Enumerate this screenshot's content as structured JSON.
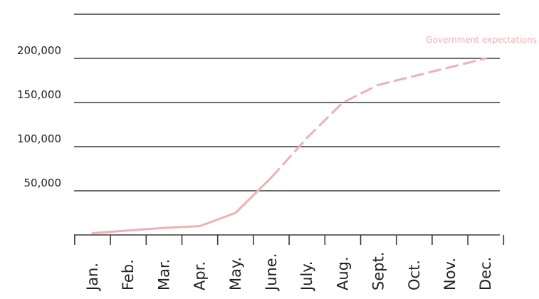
{
  "chart_data": {
    "type": "line",
    "title": "",
    "xlabel": "",
    "ylabel": "",
    "categories": [
      "Jan.",
      "Feb.",
      "Mar.",
      "Apr.",
      "May.",
      "June.",
      "July.",
      "Aug.",
      "Sept.",
      "Oct.",
      "Nov.",
      "Dec."
    ],
    "y_ticks": [
      "50,000",
      "100,000",
      "150,000",
      "200,000"
    ],
    "ylim": [
      0,
      250000
    ],
    "grid": true,
    "series": [
      {
        "values": [
          2000,
          5000,
          8000,
          10000,
          25000,
          65000,
          null,
          null,
          null,
          null,
          null,
          null
        ],
        "style": "solid",
        "color": "#f0b0b4"
      },
      {
        "name": "Government expectations",
        "values": [
          null,
          null,
          null,
          null,
          null,
          65000,
          110000,
          150000,
          170000,
          180000,
          190000,
          200000
        ],
        "style": "dashed",
        "color": "#f0b0b4"
      }
    ],
    "annotations": [
      {
        "text": "Government expectations",
        "color": "#f0b0b4",
        "near": "Dec."
      }
    ]
  }
}
